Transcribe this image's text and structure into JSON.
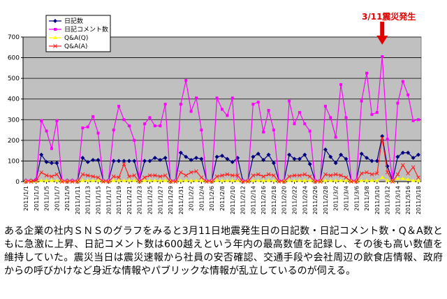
{
  "annotation": "3/11震災発生",
  "caption": "ある企業の社内ＳＮＳのグラフをみると3月11日地震発生日の日記数・日記コメント数・Q＆A数ともに急激に上昇、日記コメント数は600越えという年内の最高数値を記録し、その後も高い数値を維持していた。震災当日は震災速報から社員の安否確認、交通手段や会社周辺の飲食店情報、政府からの呼びかけなど身近な情報やパブリックな情報が乱立しているのが伺える。",
  "colors": {
    "diary": "#000080",
    "comment": "#ff00ff",
    "qa_q": "#ffff00",
    "qa_a": "#ff2020",
    "plot_bg": "#c0c0c0",
    "arrow": "#e00000"
  },
  "chart_data": {
    "type": "line",
    "ylim": [
      0,
      700
    ],
    "yticks": [
      0,
      100,
      200,
      300,
      400,
      500,
      600,
      700
    ],
    "grid": true,
    "legend_position": "top-left",
    "x_tick_labels": [
      "2011/1/1",
      "2011/1/3",
      "2011/1/5",
      "2011/1/7",
      "2011/1/9",
      "2011/1/11",
      "2011/1/13",
      "2011/1/15",
      "2011/1/17",
      "2011/1/19",
      "2011/1/21",
      "2011/1/23",
      "2011/1/25",
      "2011/1/27",
      "2011/1/29",
      "2011/1/31",
      "2011/2/2",
      "2011/2/4",
      "2011/2/6",
      "2011/2/8",
      "2011/2/10",
      "2011/2/12",
      "2011/2/14",
      "2011/2/16",
      "2011/2/18",
      "2011/2/20",
      "2011/2/22",
      "2011/2/24",
      "2011/2/26",
      "2011/2/28",
      "2011/3/2",
      "2011/3/4",
      "2011/3/6",
      "2011/3/8",
      "2011/3/10",
      "2011/3/12",
      "2011/3/14",
      "2011/3/16",
      "2011/3/18"
    ],
    "series": [
      {
        "name": "日記数",
        "values": [
          5,
          5,
          10,
          130,
          95,
          90,
          90,
          5,
          5,
          5,
          5,
          115,
          95,
          105,
          105,
          5,
          5,
          100,
          100,
          100,
          100,
          100,
          5,
          100,
          100,
          115,
          105,
          115,
          5,
          5,
          140,
          120,
          105,
          115,
          110,
          5,
          5,
          120,
          125,
          110,
          95,
          115,
          5,
          5,
          120,
          135,
          105,
          130,
          90,
          5,
          5,
          130,
          110,
          110,
          130,
          85,
          5,
          5,
          155,
          120,
          90,
          130,
          110,
          5,
          5,
          135,
          115,
          100,
          100,
          220,
          75,
          5,
          120,
          140,
          140,
          115,
          130
        ],
        "color": "#000080"
      },
      {
        "name": "日記コメント数",
        "values": [
          5,
          5,
          10,
          295,
          245,
          160,
          295,
          5,
          5,
          5,
          5,
          260,
          265,
          315,
          235,
          5,
          5,
          250,
          365,
          300,
          270,
          200,
          5,
          280,
          310,
          270,
          270,
          375,
          5,
          5,
          375,
          490,
          340,
          405,
          250,
          5,
          5,
          405,
          350,
          320,
          405,
          5,
          5,
          5,
          375,
          385,
          240,
          345,
          250,
          5,
          5,
          390,
          280,
          335,
          280,
          245,
          5,
          5,
          365,
          310,
          215,
          470,
          310,
          5,
          5,
          390,
          525,
          325,
          335,
          605,
          205,
          5,
          380,
          485,
          420,
          295,
          300
        ],
        "color": "#ff00ff"
      },
      {
        "name": "Q&A(Q)",
        "values": [
          2,
          2,
          2,
          5,
          5,
          5,
          5,
          2,
          2,
          2,
          2,
          5,
          5,
          5,
          5,
          2,
          2,
          5,
          5,
          5,
          5,
          5,
          2,
          5,
          5,
          5,
          5,
          5,
          2,
          2,
          5,
          5,
          5,
          5,
          5,
          2,
          2,
          5,
          5,
          5,
          5,
          5,
          2,
          2,
          5,
          5,
          5,
          5,
          5,
          2,
          2,
          5,
          5,
          5,
          5,
          5,
          2,
          2,
          5,
          5,
          5,
          5,
          5,
          2,
          2,
          5,
          5,
          5,
          5,
          20,
          5,
          2,
          15,
          15,
          10,
          5,
          5
        ],
        "color": "#ffff00"
      },
      {
        "name": "Q&A(A)",
        "values": [
          0,
          0,
          5,
          45,
          30,
          25,
          35,
          0,
          0,
          0,
          0,
          35,
          30,
          25,
          20,
          0,
          0,
          25,
          20,
          85,
          25,
          30,
          0,
          20,
          30,
          30,
          25,
          30,
          0,
          0,
          45,
          30,
          45,
          50,
          20,
          0,
          0,
          25,
          30,
          35,
          30,
          30,
          0,
          0,
          30,
          35,
          25,
          35,
          30,
          0,
          0,
          25,
          30,
          30,
          35,
          25,
          0,
          0,
          35,
          30,
          35,
          30,
          20,
          0,
          0,
          40,
          45,
          35,
          40,
          210,
          45,
          0,
          35,
          80,
          40,
          70,
          20
        ],
        "color": "#ff2020"
      }
    ]
  }
}
